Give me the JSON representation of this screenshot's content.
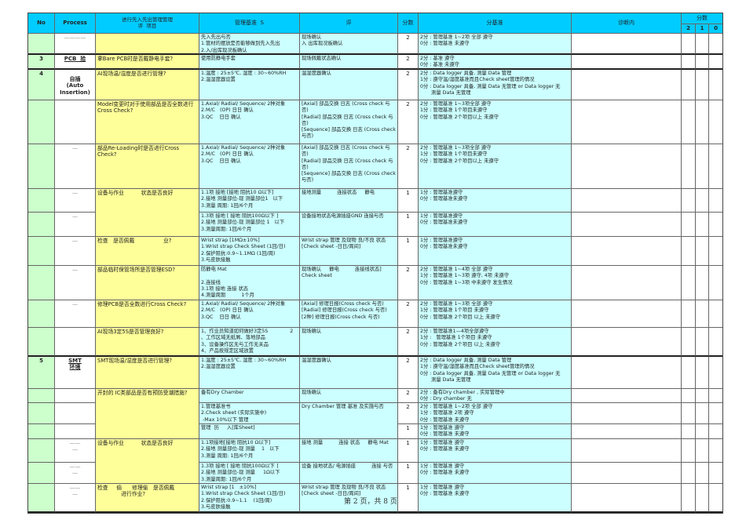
{
  "header": {
    "no": "No",
    "process": "Process",
    "item": "进行先入先出管理管理\n评  项目",
    "standard": "管理基准  S",
    "method": "评",
    "score": "分数",
    "criteria": "分基准",
    "diagnosis": "诊断内",
    "score_group": "分数",
    "s2": "2",
    "s1": "1",
    "s0": "0"
  },
  "colors": {
    "header": "#00ccff",
    "no_col": "#ccffcc",
    "item_col": "#ffff99",
    "standard_col": "#ccffff"
  },
  "rows": [
    {
      "no": "",
      "process": "————",
      "item": "",
      "standard": "先入先出与否\n1.管材的摆放是否能够做到先入先出\n2.入/出库现况板确认",
      "method": "现场确认\n入 出库现况板确认",
      "score": "2",
      "criteria": "2分 : 管理基准 1~2项 全部 遵守\n0分 : 管理基准 未遵守"
    },
    {
      "no": "3",
      "process": "PCB  拾",
      "item": "拿Bare PCB时是否戴静电手套?",
      "standard": "使用防静电手套",
      "method": "现场佩戴状态确认",
      "score": "2",
      "criteria": "2分 : 基准 遵守\n0分 : 基准 未遵守"
    },
    {
      "no": "4",
      "process": "自插\n(Auto\nInsertion)",
      "item": "AI现场温/湿度是否进行管理?",
      "standard": "1.温度 : 25±5℃, 湿度 : 30~60%RH\n2.温湿度器设置",
      "method": "温湿度器确认",
      "score": "2",
      "criteria": "2分 : Data logger 具备, 测量 Data 管理\n1分 : 遵守温/湿度基准而且Check sheet管理的情况\n0分 : Data logger 具备, 测量 Data 无管理 or Data logger 无\n       测量 Data 无管理"
    },
    {
      "no": "",
      "process": "",
      "item": "Model变更时对于使用部品是否全数进行Cross Check?",
      "standard": "1.Axial/ Radial/ Sequence/ 2种对象\n2.M/C   (OP) 日日 确认\n3.QC    日日 确认",
      "method": "[Axial] 部品交换 日志 (Cross check 与否)\n[Radial] 部品交换 日志 (Cross check 与否)\n[Sequence] 部品交换 日志 (Cross check 与否)",
      "score": "2",
      "criteria": "2分 : 管理基准 1~3项全部 遵守\n1分 : 管理基准 1个项目未遵守\n0分 : 管理基准 2个项目以上 未遵守"
    },
    {
      "no": "",
      "process": "—",
      "item": "部品Re-Loading时是否进行Cross Check?",
      "standard": "1.Axial/ Radial/ Sequence/ 2种对象\n2.M/C   (OP) 日日 确认\n3.QC    日日 确认",
      "method": "[Axial] 部品交换 日志 (Cross check 与否)\n[Radial] 部品交换 日志 (Cross check 与否)\n[Sequence] 部品交换 日志 (Cross check 与否)",
      "score": "2",
      "criteria": "2分 : 管理基准 1~3项全部 遵守\n1分 : 管理基准 1个项目未遵守\n0分 : 管理基准 2个项目以上 未遵守"
    },
    {
      "no": "",
      "process": "—",
      "item": "设备与作业          状态是否良好",
      "standard": "1.1项 接地 [接地 阻抗10 Ω以下]\n2.接地 测量部位-现 测量部位1   以下\n3.测量 周期: 1回/6个月",
      "method": "接地测量          连接状态     静电",
      "score": "1",
      "criteria": "1分 : 管理基准遵守\n0分 : 管理基准未遵守"
    },
    {
      "no": "",
      "process": "—",
      "item": null,
      "standard": "1.3项 接地 [ 接地 阻抗100Ω以下 ]\n2.接地 测量部位-现 测量部位 1   以下\n3.测量周期: 1回/6个月",
      "method": "设备接地状态电源插座GND 连接与否",
      "score": "1",
      "criteria": "1分 : 管理基准遵守\n0分 : 管理基准未遵守"
    },
    {
      "no": "",
      "process": "—",
      "item": "检查   是否佩戴                 业?",
      "standard": "Wrist strap [1MΩ±10%]\n1.Wrist strap Check Sheet (1回/日)\n2.保护阻抗:0.9~1.1MΩ (1回/周)\n3.与皮肤接触",
      "method": "Wrist strap 管理 及现物 良/不良 状态\n[Check sheet -日日/周间]",
      "score": "1",
      "criteria": "1分 : 管理基准遵守\n0分 : 管理基准未遵守"
    },
    {
      "no": "",
      "process": "—",
      "item": "部品临时保管场所是否管理ESD?",
      "standard": "防静电 Mat\n\n2.连接线\n3.1项 接地 连接 状态\n4.测量周期          1个月",
      "method": "现场确认     静电          连接线状态]\nCheck sheet",
      "score": "2",
      "criteria": "2分 : 管理基准 1~4项 全部 遵守\n1分 : 管理基准 1~3项 遵守, 4项 未遵守\n0分 : 管理基准 1~3项 中未遵守 发生情况"
    },
    {
      "no": "",
      "process": "—",
      "item": "修理PCB是否全数进行Cross Check?",
      "standard": "1.Axial/ Radial/ Sequence/ 2种对象\n2.M/C   (OP) 日日 确认\n3.QC    日日 确认",
      "method": "[Axial] 修理日报(Cross check 与否)\n[Radial] 修理日报(Cross check 与否)\n[2种] 修理日报(Cross check 与否)",
      "score": "2",
      "criteria": "2分 : 管理基准 1~3项 全部 遵守\n1分 : 管理基准 1个项目 未遵守\n0分 : 管理基准 2个项目 以上 未遵守"
    },
    {
      "no": "",
      "process": "",
      "item": "AI现场3定5S是否管理良好?",
      "standard": "1、作业员知道如何做好3定5S              2\n、工作区域无纸屑、落地部品\n3、设备操作区无与工作无关品\n4、产品按规定区域放置",
      "method": "现场确认",
      "score": "2",
      "criteria": "2分 : 管理基准1—4项全部遵守\n1分 :   管理基准 1个项目 未遵守\n0分 : 管理基准 2个项目 以上 未遵守"
    },
    {
      "no": "5",
      "process": "SMT\n环境",
      "item": "SMT现场温/湿度是否进行管理?",
      "standard": "1.温度 : 25±5℃, 湿度 : 30~60%RH\n2.温湿度器设置",
      "method": "温湿度器确认",
      "score": "2",
      "criteria": "2分 : Data logger 具备, 测量 Data 管理\n1分 : 遵守温/湿度基准而且Check sheet管理的情况\n0分 : Data logger 具备, 测量 Data 无管理 or Data logger 无\n       测量 Data 无管理"
    },
    {
      "no": "",
      "process": "",
      "item": "开封的 IC类部品是否有预防受潮措施?",
      "standard": "备有Dry Chamber",
      "method": "现场确认",
      "score": "2",
      "criteria": "2分 : 备有Dry chamber , 实际管理中\n0分 : Dry chamber 无"
    },
    {
      "no": "",
      "process": "",
      "item": null,
      "standard": "1.管理基准书\n2.Check sheet (实际实施中)\n -Max 10%以下 管理",
      "method": "Dry Chamber 管理 基准 及实施与否",
      "score": "2",
      "criteria": "2分 : 管理基准 1~2项 全部 遵守\n1分 : 管理基准 2项 遵守\n0分 : 管理基准 未遵守"
    },
    {
      "no": "",
      "process": "",
      "item": null,
      "standard": "管理  历     入[库Sheet]",
      "method": null,
      "score": "1",
      "criteria": "1分 : 管理基准 遵守\n0分 : 管理基准 未遵守"
    },
    {
      "no": "",
      "process": "——\n—",
      "item": "设备与作业          状态是否良好",
      "standard": "1.1项接地[接地 阻抗10 Ω以下]\n2.接地 测量部位-现 测量    1   以下\n3.测量 周期: 1回/6个月",
      "method": "接地 测量          连接 状态     静电 Mat",
      "score": "1",
      "criteria": "1分 : 管理基准 遵守\n0分 : 管理基准 未遵守"
    },
    {
      "no": "",
      "process": "——\n—",
      "item": null,
      "standard": "1.3项 接地 [ 接地 阻抗100Ω以下 ]\n2.接地 测量部位-现 测量     1Ω以下\n3.测量周期: 1回/6个月",
      "method": "设备 接地状态/ 电源插座          连接 与否",
      "score": "1",
      "criteria": "1分 : 管理基准 遵守\n0分 : 管理基准 未遵守"
    },
    {
      "no": "",
      "process": "——\n—",
      "item": "检查     偷      修理偷   是否佩戴\n              进行作业?",
      "standard": "Wrist strap [1   ±10%]\n1.Wrist strap Check Sheet (1回/日)\n2.保护阻抗:0.9~1.1    (1回/周)\n3.与皮肤接触",
      "method": "Wrist strap 管理 及现物 良/不良 状态\n[Check sheet -日日/周间]",
      "score": "1",
      "criteria": "1分 : 管理基准 遵守\n0分 : 管理基准 未遵守"
    }
  ],
  "footer": "第 2 页，共 8 页"
}
